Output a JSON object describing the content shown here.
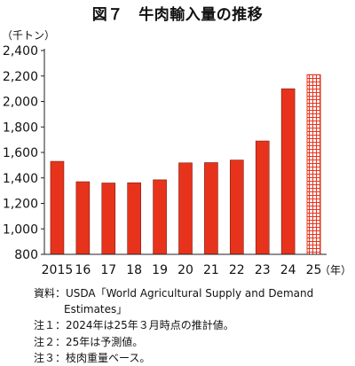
{
  "chart_data": {
    "type": "bar",
    "title": "図７　牛肉輸入量の推移",
    "ylabel": "（千トン）",
    "x_unit": "（年）",
    "categories": [
      "2015",
      "16",
      "17",
      "18",
      "19",
      "20",
      "21",
      "22",
      "23",
      "24",
      "25"
    ],
    "values": [
      1530,
      1370,
      1360,
      1362,
      1385,
      1518,
      1520,
      1540,
      1690,
      2100,
      2210
    ],
    "ylim": [
      800,
      2400
    ],
    "yticks": [
      "800",
      "1,000",
      "1,200",
      "1,400",
      "1,600",
      "1,800",
      "2,000",
      "2,200",
      "2,400"
    ],
    "bar_color": "#e8331c",
    "forecast_index": 10,
    "forecast_pattern": "grid",
    "grid": false,
    "legend": "none"
  },
  "notes": {
    "source_line1": "資料：USDA「World Agricultural Supply and Demand",
    "source_line2": "Estimates」",
    "note1": "注１：2024年は25年３月時点の推計値。",
    "note2": "注２：25年は予測値。",
    "note3": "注３：枝肉重量ベース。"
  }
}
